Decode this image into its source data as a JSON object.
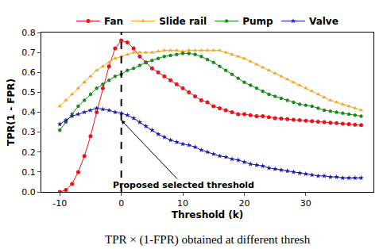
{
  "chart_data": {
    "type": "line",
    "x_label": "Threshold (k)",
    "y_label": "TPR(1 - FPR)",
    "caption": "TPR × (1-FPR) obtained at different thresh",
    "x": [
      -10,
      -9,
      -8,
      -7,
      -6,
      -5,
      -4,
      -3,
      -2,
      -1,
      0,
      1,
      2,
      3,
      4,
      5,
      6,
      7,
      8,
      9,
      10,
      11,
      12,
      13,
      14,
      15,
      16,
      17,
      18,
      19,
      20,
      21,
      22,
      23,
      24,
      25,
      26,
      27,
      28,
      29,
      30,
      31,
      32,
      33,
      34,
      35,
      36,
      37,
      38,
      39
    ],
    "series": [
      {
        "name": "Fan",
        "color": "#e8141b",
        "marker": "circle",
        "line_style": "solid",
        "values": [
          0.0,
          0.01,
          0.04,
          0.1,
          0.18,
          0.28,
          0.4,
          0.52,
          0.63,
          0.72,
          0.76,
          0.75,
          0.72,
          0.68,
          0.65,
          0.62,
          0.6,
          0.58,
          0.56,
          0.54,
          0.52,
          0.5,
          0.48,
          0.46,
          0.45,
          0.43,
          0.42,
          0.41,
          0.4,
          0.39,
          0.39,
          0.385,
          0.38,
          0.38,
          0.375,
          0.37,
          0.368,
          0.365,
          0.362,
          0.36,
          0.357,
          0.355,
          0.352,
          0.35,
          0.347,
          0.345,
          0.342,
          0.34,
          0.337,
          0.335
        ]
      },
      {
        "name": "Slide rail",
        "color": "#f5a623",
        "marker": "triangle-up",
        "line_style": "solid",
        "values": [
          0.43,
          0.46,
          0.49,
          0.52,
          0.55,
          0.58,
          0.61,
          0.63,
          0.65,
          0.67,
          0.68,
          0.69,
          0.7,
          0.7,
          0.7,
          0.7,
          0.705,
          0.71,
          0.71,
          0.71,
          0.705,
          0.71,
          0.71,
          0.71,
          0.71,
          0.71,
          0.71,
          0.7,
          0.69,
          0.68,
          0.67,
          0.655,
          0.64,
          0.625,
          0.61,
          0.595,
          0.58,
          0.565,
          0.55,
          0.535,
          0.52,
          0.505,
          0.49,
          0.475,
          0.46,
          0.45,
          0.44,
          0.43,
          0.42,
          0.41
        ]
      },
      {
        "name": "Pump",
        "color": "#1a8a1a",
        "marker": "pentagon",
        "line_style": "solid",
        "values": [
          0.31,
          0.35,
          0.39,
          0.43,
          0.46,
          0.49,
          0.52,
          0.54,
          0.56,
          0.58,
          0.59,
          0.61,
          0.62,
          0.635,
          0.65,
          0.66,
          0.67,
          0.68,
          0.685,
          0.69,
          0.695,
          0.695,
          0.69,
          0.68,
          0.665,
          0.65,
          0.63,
          0.61,
          0.59,
          0.57,
          0.55,
          0.535,
          0.52,
          0.505,
          0.49,
          0.48,
          0.47,
          0.46,
          0.45,
          0.44,
          0.435,
          0.43,
          0.42,
          0.41,
          0.405,
          0.4,
          0.395,
          0.39,
          0.385,
          0.38
        ]
      },
      {
        "name": "Valve",
        "color": "#1a1aa8",
        "marker": "star",
        "line_style": "solid",
        "values": [
          0.34,
          0.36,
          0.38,
          0.39,
          0.4,
          0.41,
          0.42,
          0.415,
          0.41,
          0.4,
          0.395,
          0.385,
          0.37,
          0.35,
          0.33,
          0.31,
          0.29,
          0.275,
          0.26,
          0.25,
          0.24,
          0.235,
          0.225,
          0.21,
          0.2,
          0.19,
          0.18,
          0.175,
          0.165,
          0.16,
          0.15,
          0.14,
          0.135,
          0.13,
          0.12,
          0.115,
          0.11,
          0.105,
          0.1,
          0.095,
          0.09,
          0.085,
          0.08,
          0.08,
          0.075,
          0.075,
          0.07,
          0.07,
          0.07,
          0.07
        ]
      }
    ],
    "xlim": [
      -13,
      41
    ],
    "xticks": [
      -10,
      0,
      10,
      20,
      30
    ],
    "ylim": [
      0,
      0.8
    ],
    "yticks": [
      {
        "value": 0,
        "label": "0.0"
      },
      0.1,
      0.2,
      0.3,
      0.4,
      0.5,
      0.6,
      0.7,
      0.8
    ],
    "grid": false,
    "legend": "top",
    "annotations": [
      {
        "text": "Proposed selected threshold",
        "x": 0,
        "y": 0.36,
        "line_style": "dash"
      }
    ]
  }
}
